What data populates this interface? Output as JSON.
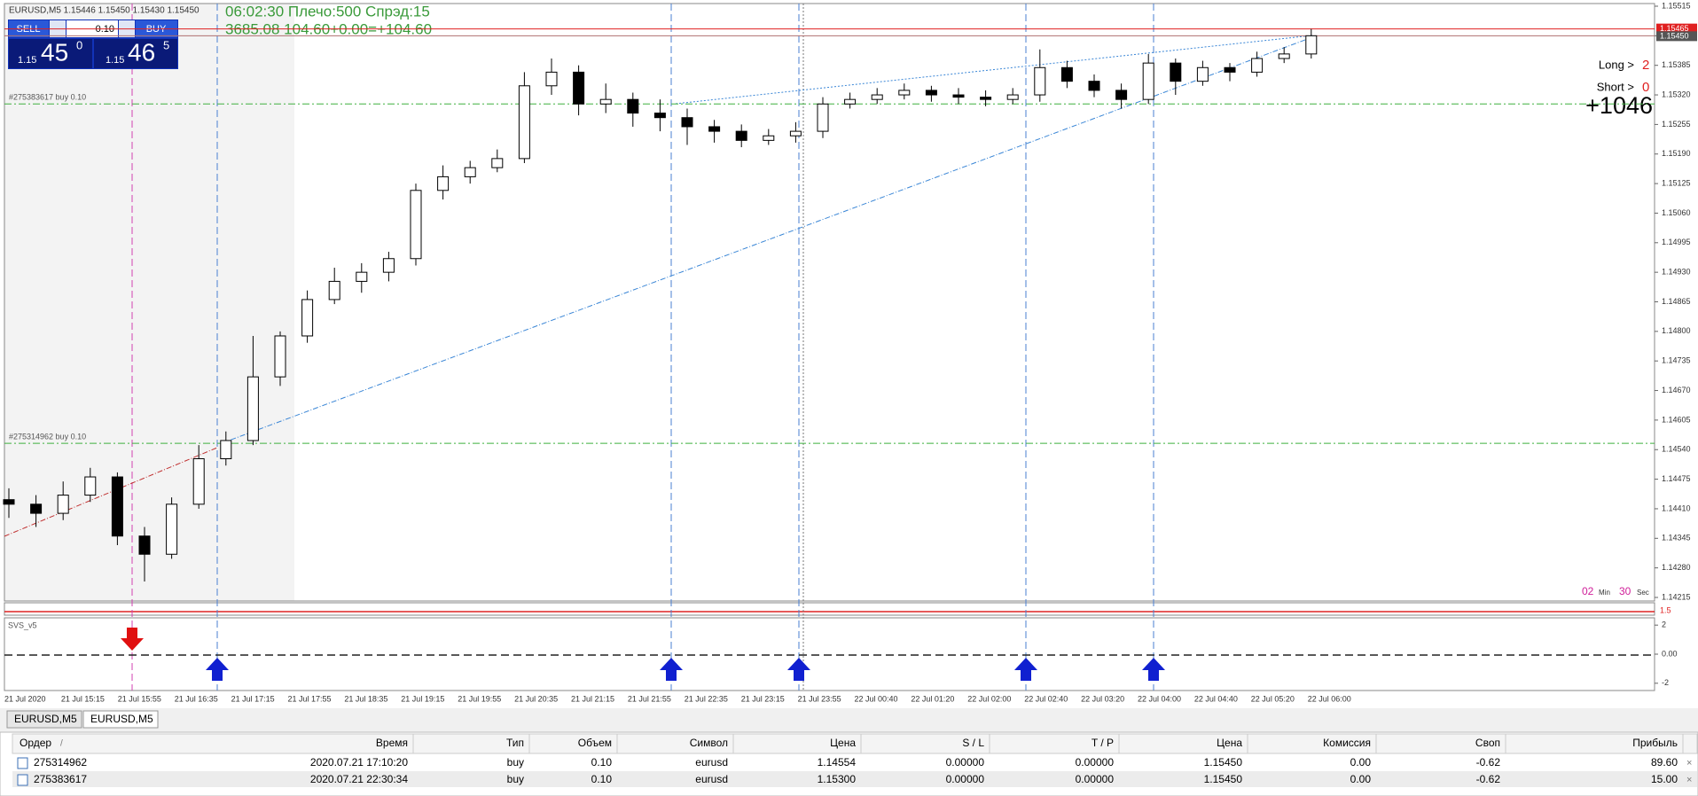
{
  "toolbar": {
    "symbol_line": "EURUSD,M5  1.15446 1.15450 1.15430 1.15450",
    "info_line1": "06:02:30 Плечо:500 Спрэд:15",
    "info_line2": "3685.08   104.60+0.00=+104.60"
  },
  "trade_panel": {
    "sell": "SELL",
    "buy": "BUY",
    "lot": "0.10",
    "bid_prefix": "1.15",
    "bid_big": "45",
    "bid_small": "0",
    "ask_prefix": "1.15",
    "ask_big": "46",
    "ask_small": "5"
  },
  "stats": {
    "long_label": "Long >",
    "long_value": "2",
    "short_label": "Short >",
    "short_value": "0",
    "profit": "+1046"
  },
  "timer": {
    "minutes": "02",
    "min_label": "Min",
    "seconds": "30",
    "sec_label": "Sec"
  },
  "chart_data": {
    "type": "candlestick",
    "ylim": [
      1.14215,
      1.15515
    ],
    "yticks": [
      1.15515,
      {
        "value": 1.1545,
        "label": "1.15450"
      },
      1.15385,
      {
        "value": 1.1532,
        "label": "1.15320"
      },
      1.15255,
      {
        "value": 1.1519,
        "label": "1.15190"
      },
      1.15125,
      {
        "value": 1.1506,
        "label": "1.15060"
      },
      1.14995,
      {
        "value": 1.1493,
        "label": "1.14930"
      },
      1.14865,
      {
        "value": 1.148,
        "label": "1.14800"
      },
      1.14735,
      {
        "value": 1.1467,
        "label": "1.14670"
      },
      1.14605,
      {
        "value": 1.1454,
        "label": "1.14540"
      },
      1.14475,
      {
        "value": 1.1441,
        "label": "1.14410"
      },
      1.14345,
      {
        "value": 1.1428,
        "label": "1.14280"
      },
      1.14215
    ],
    "x_labels": [
      "21 Jul 2020",
      "21 Jul 15:15",
      "21 Jul 15:55",
      "21 Jul 16:35",
      "21 Jul 17:15",
      "21 Jul 17:55",
      "21 Jul 18:35",
      "21 Jul 19:15",
      "21 Jul 19:55",
      "21 Jul 20:35",
      "21 Jul 21:15",
      "21 Jul 21:55",
      "21 Jul 22:35",
      "21 Jul 23:15",
      "21 Jul 23:55",
      "22 Jul 00:40",
      "22 Jul 01:20",
      "22 Jul 02:00",
      "22 Jul 02:40",
      "22 Jul 03:20",
      "22 Jul 04:00",
      "22 Jul 04:40",
      "22 Jul 05:20",
      "22 Jul 06:00"
    ],
    "candles": [
      [
        1.1443,
        1.14455,
        1.1439,
        1.1442
      ],
      [
        1.1442,
        1.1444,
        1.1437,
        1.144
      ],
      [
        1.144,
        1.1447,
        1.14385,
        1.1444
      ],
      [
        1.1444,
        1.145,
        1.14425,
        1.1448
      ],
      [
        1.1448,
        1.1449,
        1.1433,
        1.1435
      ],
      [
        1.1435,
        1.1437,
        1.1425,
        1.1431
      ],
      [
        1.1431,
        1.14435,
        1.143,
        1.1442
      ],
      [
        1.1442,
        1.1455,
        1.1441,
        1.1452
      ],
      [
        1.1452,
        1.1458,
        1.14505,
        1.1456
      ],
      [
        1.1456,
        1.1479,
        1.1455,
        1.147
      ],
      [
        1.147,
        1.148,
        1.1468,
        1.1479
      ],
      [
        1.1479,
        1.1489,
        1.14775,
        1.1487
      ],
      [
        1.1487,
        1.1494,
        1.1486,
        1.1491
      ],
      [
        1.1491,
        1.1495,
        1.14885,
        1.1493
      ],
      [
        1.1493,
        1.14975,
        1.1491,
        1.1496
      ],
      [
        1.1496,
        1.15125,
        1.14945,
        1.1511
      ],
      [
        1.1511,
        1.15165,
        1.1509,
        1.1514
      ],
      [
        1.1514,
        1.15175,
        1.15125,
        1.1516
      ],
      [
        1.1516,
        1.152,
        1.1515,
        1.1518
      ],
      [
        1.1518,
        1.1537,
        1.1517,
        1.1534
      ],
      [
        1.1534,
        1.154,
        1.1532,
        1.1537
      ],
      [
        1.1537,
        1.15385,
        1.15275,
        1.153
      ],
      [
        1.153,
        1.15345,
        1.1528,
        1.1531
      ],
      [
        1.1531,
        1.15325,
        1.1525,
        1.1528
      ],
      [
        1.1528,
        1.1531,
        1.1524,
        1.1527
      ],
      [
        1.1527,
        1.1529,
        1.1521,
        1.1525
      ],
      [
        1.1525,
        1.15265,
        1.15215,
        1.1524
      ],
      [
        1.1524,
        1.15255,
        1.15205,
        1.1522
      ],
      [
        1.1522,
        1.15245,
        1.1521,
        1.1523
      ],
      [
        1.1523,
        1.1526,
        1.15215,
        1.1524
      ],
      [
        1.1524,
        1.15315,
        1.15225,
        1.153
      ],
      [
        1.153,
        1.15325,
        1.1529,
        1.1531
      ],
      [
        1.1531,
        1.15335,
        1.153,
        1.1532
      ],
      [
        1.1532,
        1.15345,
        1.1531,
        1.1533
      ],
      [
        1.1533,
        1.1534,
        1.15305,
        1.1532
      ],
      [
        1.1532,
        1.15335,
        1.153,
        1.15315
      ],
      [
        1.15315,
        1.1533,
        1.15295,
        1.1531
      ],
      [
        1.1531,
        1.15335,
        1.153,
        1.1532
      ],
      [
        1.1532,
        1.1542,
        1.15305,
        1.1538
      ],
      [
        1.1538,
        1.15395,
        1.15335,
        1.1535
      ],
      [
        1.1535,
        1.15365,
        1.15315,
        1.1533
      ],
      [
        1.1533,
        1.15345,
        1.1529,
        1.1531
      ],
      [
        1.1531,
        1.1541,
        1.153,
        1.1539
      ],
      [
        1.1539,
        1.154,
        1.1532,
        1.1535
      ],
      [
        1.1535,
        1.15395,
        1.1534,
        1.1538
      ],
      [
        1.1538,
        1.1539,
        1.1535,
        1.1537
      ],
      [
        1.1537,
        1.15415,
        1.1536,
        1.154
      ],
      [
        1.154,
        1.15425,
        1.1539,
        1.1541
      ],
      [
        1.1541,
        1.15465,
        1.154,
        1.1545
      ]
    ],
    "orders": [
      {
        "label": "#275314962 buy 0.10",
        "price": 1.14554
      },
      {
        "label": "#275383617 buy 0.10",
        "price": 1.153
      }
    ],
    "ask": 1.15465,
    "bid": {
      "value": 1.1545,
      "label": "1.15450"
    },
    "strip_label": "1.5",
    "indicator": {
      "name": "SVS_v5",
      "ylim": [
        -2.5,
        2.5
      ],
      "yticks": [
        2,
        {
          "value": 0,
          "label": "0.00"
        },
        -2
      ]
    }
  },
  "tabs": [
    "EURUSD,M5",
    "EURUSD,M5"
  ],
  "table": {
    "columns": [
      "Ордер",
      "Время",
      "Тип",
      "Объем",
      "Символ",
      "Цена",
      "S / L",
      "T / P",
      "Цена",
      "Комиссия",
      "Своп",
      "Прибыль"
    ],
    "sort_indicator": "/",
    "rows": [
      [
        "275314962",
        "2020.07.21 17:10:20",
        "buy",
        "0.10",
        "eurusd",
        "1.14554",
        "0.00000",
        "0.00000",
        "1.15450",
        "0.00",
        "-0.62",
        "89.60"
      ],
      [
        "275383617",
        "2020.07.21 22:30:34",
        "buy",
        "0.10",
        "eurusd",
        "1.15300",
        "0.00000",
        "0.00000",
        "1.15450",
        "0.00",
        "-0.62",
        "15.00"
      ]
    ]
  }
}
